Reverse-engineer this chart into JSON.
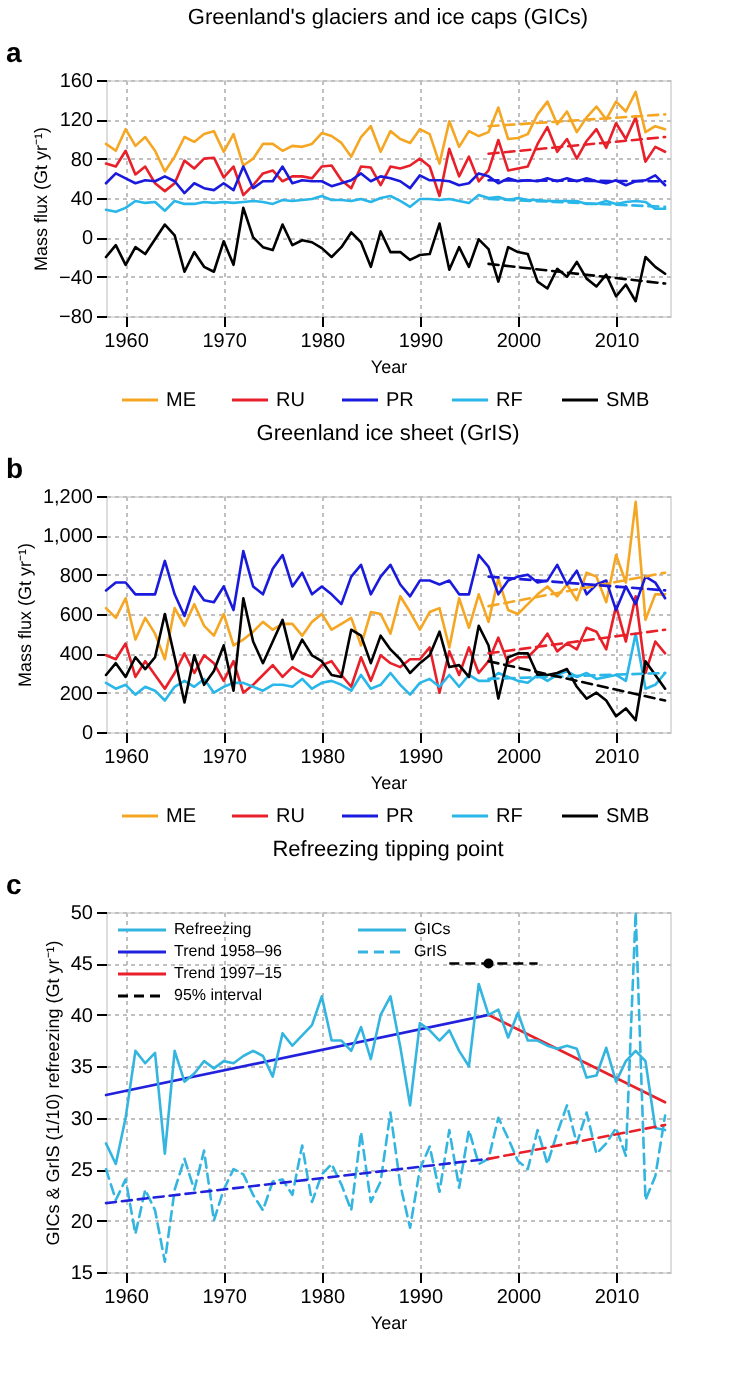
{
  "chart_data": [
    {
      "type": "line",
      "title": "Greenland's glaciers and ice caps (GICs)",
      "xlabel": "Year",
      "ylabel": "Mass flux (Gt yr⁻¹)",
      "annotations": [
        "a"
      ],
      "x": [
        1958,
        1959,
        1960,
        1961,
        1962,
        1963,
        1964,
        1965,
        1966,
        1967,
        1968,
        1969,
        1970,
        1971,
        1972,
        1973,
        1974,
        1975,
        1976,
        1977,
        1978,
        1979,
        1980,
        1981,
        1982,
        1983,
        1984,
        1985,
        1986,
        1987,
        1988,
        1989,
        1990,
        1991,
        1992,
        1993,
        1994,
        1995,
        1996,
        1997,
        1998,
        1999,
        2000,
        2001,
        2002,
        2003,
        2004,
        2005,
        2006,
        2007,
        2008,
        2009,
        2010,
        2011,
        2012,
        2013,
        2014,
        2015
      ],
      "xlim": [
        1958,
        2015.5
      ],
      "xticks": [
        1960,
        1970,
        1980,
        1990,
        2000,
        2010
      ],
      "ylim": [
        -80,
        160
      ],
      "yticks": [
        {
          "value": -80,
          "label": "−80"
        },
        {
          "value": -40,
          "label": "−40"
        },
        0,
        40,
        80,
        120,
        160
      ],
      "grid": true,
      "legend": "bottom",
      "line_style": "solid",
      "series": [
        {
          "name": "ME",
          "color": "#f5a623",
          "values": [
            95,
            88,
            110,
            93,
            102,
            88,
            67,
            82,
            102,
            97,
            105,
            108,
            87,
            105,
            73,
            80,
            95,
            95,
            88,
            93,
            92,
            95,
            106,
            103,
            96,
            82,
            102,
            113,
            87,
            108,
            100,
            96,
            110,
            105,
            75,
            118,
            92,
            108,
            103,
            107,
            132,
            100,
            101,
            105,
            125,
            138,
            115,
            128,
            107,
            122,
            133,
            120,
            138,
            128,
            148,
            107,
            113,
            110
          ]
        },
        {
          "name": "RU",
          "color": "#e8202a",
          "values": [
            75,
            72,
            88,
            64,
            72,
            55,
            47,
            55,
            78,
            70,
            80,
            81,
            61,
            72,
            43,
            53,
            65,
            68,
            57,
            62,
            62,
            60,
            72,
            73,
            58,
            50,
            72,
            71,
            53,
            72,
            70,
            73,
            80,
            72,
            42,
            90,
            62,
            82,
            57,
            68,
            99,
            68,
            70,
            72,
            95,
            112,
            87,
            100,
            80,
            98,
            110,
            91,
            116,
            100,
            122,
            77,
            92,
            87
          ]
        },
        {
          "name": "PR",
          "color": "#1a1adc",
          "values": [
            55,
            65,
            60,
            55,
            58,
            57,
            62,
            57,
            45,
            55,
            50,
            48,
            55,
            48,
            72,
            50,
            57,
            57,
            72,
            55,
            58,
            57,
            57,
            52,
            55,
            58,
            65,
            57,
            62,
            60,
            57,
            50,
            63,
            58,
            58,
            57,
            53,
            55,
            65,
            62,
            55,
            60,
            57,
            58,
            57,
            60,
            57,
            60,
            57,
            60,
            57,
            55,
            58,
            53,
            57,
            58,
            63,
            53
          ]
        },
        {
          "name": "RF",
          "color": "#29b6e8",
          "values": [
            28,
            26,
            30,
            37,
            35,
            36,
            27,
            37,
            34,
            34,
            36,
            35,
            36,
            35,
            36,
            37,
            36,
            34,
            38,
            37,
            38,
            39,
            42,
            38,
            38,
            37,
            39,
            36,
            40,
            42,
            37,
            31,
            39,
            39,
            38,
            39,
            37,
            35,
            43,
            40,
            41,
            38,
            40,
            38,
            38,
            37,
            37,
            37,
            37,
            34,
            34,
            37,
            34,
            36,
            37,
            36,
            29,
            29
          ]
        },
        {
          "name": "SMB",
          "color": "#000000",
          "values": [
            -20,
            -8,
            -28,
            -10,
            -17,
            -2,
            13,
            2,
            -35,
            -15,
            -30,
            -35,
            -4,
            -28,
            30,
            0,
            -10,
            -13,
            13,
            -8,
            -3,
            -5,
            -11,
            -20,
            -10,
            5,
            -5,
            -30,
            6,
            -15,
            -15,
            -23,
            -18,
            -17,
            14,
            -33,
            -10,
            -30,
            -2,
            -12,
            -45,
            -10,
            -15,
            -17,
            -45,
            -52,
            -32,
            -40,
            -25,
            -42,
            -50,
            -38,
            -60,
            -48,
            -65,
            -20,
            -30,
            -37
          ]
        },
        {
          "color": "#f5a623",
          "line_style": "dashed",
          "x": [
            1997,
            2015
          ],
          "values": [
            113,
            125
          ]
        },
        {
          "color": "#e8202a",
          "line_style": "dashed",
          "x": [
            1997,
            2015
          ],
          "values": [
            85,
            102
          ]
        },
        {
          "color": "#1a1adc",
          "line_style": "dashed",
          "x": [
            1997,
            2015
          ],
          "values": [
            58,
            57
          ]
        },
        {
          "color": "#29b6e8",
          "line_style": "dashed",
          "x": [
            1997,
            2015
          ],
          "values": [
            39,
            31
          ]
        },
        {
          "color": "#000000",
          "line_style": "dashed",
          "x": [
            1997,
            2015
          ],
          "values": [
            -27,
            -47
          ]
        }
      ]
    },
    {
      "type": "line",
      "title": "Greenland ice sheet (GrIS)",
      "xlabel": "Year",
      "ylabel": "Mass flux (Gt yr⁻¹)",
      "annotations": [
        "b"
      ],
      "x": [
        1958,
        1959,
        1960,
        1961,
        1962,
        1963,
        1964,
        1965,
        1966,
        1967,
        1968,
        1969,
        1970,
        1971,
        1972,
        1973,
        1974,
        1975,
        1976,
        1977,
        1978,
        1979,
        1980,
        1981,
        1982,
        1983,
        1984,
        1985,
        1986,
        1987,
        1988,
        1989,
        1990,
        1991,
        1992,
        1993,
        1994,
        1995,
        1996,
        1997,
        1998,
        1999,
        2000,
        2001,
        2002,
        2003,
        2004,
        2005,
        2006,
        2007,
        2008,
        2009,
        2010,
        2011,
        2012,
        2013,
        2014,
        2015
      ],
      "xlim": [
        1958,
        2015.5
      ],
      "xticks": [
        1960,
        1970,
        1980,
        1990,
        2000,
        2010
      ],
      "ylim": [
        0,
        1200
      ],
      "yticks": [
        0,
        200,
        400,
        600,
        800,
        {
          "value": 1000,
          "label": "1,000"
        },
        {
          "value": 1200,
          "label": "1,200"
        }
      ],
      "grid": true,
      "legend": "bottom",
      "line_style": "solid",
      "series": [
        {
          "name": "ME",
          "color": "#f5a623",
          "values": [
            630,
            580,
            680,
            470,
            580,
            500,
            370,
            630,
            540,
            650,
            540,
            490,
            600,
            440,
            470,
            510,
            560,
            520,
            550,
            550,
            490,
            560,
            600,
            520,
            550,
            580,
            440,
            610,
            600,
            500,
            690,
            610,
            520,
            610,
            630,
            430,
            680,
            530,
            700,
            560,
            780,
            620,
            600,
            650,
            700,
            740,
            690,
            750,
            670,
            810,
            790,
            660,
            900,
            760,
            1170,
            570,
            700,
            700
          ]
        },
        {
          "name": "RU",
          "color": "#e8202a",
          "values": [
            390,
            370,
            450,
            280,
            360,
            290,
            220,
            300,
            400,
            300,
            390,
            350,
            260,
            360,
            200,
            240,
            290,
            340,
            280,
            330,
            300,
            280,
            340,
            360,
            290,
            230,
            380,
            260,
            390,
            350,
            330,
            370,
            370,
            430,
            200,
            410,
            290,
            430,
            300,
            360,
            480,
            350,
            380,
            380,
            430,
            500,
            410,
            450,
            420,
            530,
            510,
            420,
            640,
            460,
            690,
            300,
            460,
            400
          ]
        },
        {
          "name": "PR",
          "color": "#1a1adc",
          "values": [
            720,
            760,
            760,
            700,
            700,
            700,
            870,
            700,
            590,
            740,
            670,
            660,
            740,
            620,
            920,
            740,
            700,
            830,
            900,
            740,
            810,
            700,
            740,
            700,
            650,
            790,
            850,
            700,
            790,
            850,
            750,
            690,
            770,
            770,
            750,
            770,
            700,
            700,
            900,
            840,
            700,
            770,
            790,
            800,
            760,
            770,
            850,
            750,
            820,
            700,
            750,
            770,
            620,
            740,
            650,
            790,
            760,
            680
          ]
        },
        {
          "name": "RF",
          "color": "#29b6e8",
          "values": [
            250,
            220,
            240,
            190,
            230,
            210,
            160,
            230,
            260,
            230,
            270,
            200,
            230,
            250,
            250,
            230,
            210,
            240,
            240,
            230,
            270,
            220,
            250,
            260,
            240,
            210,
            290,
            220,
            240,
            300,
            240,
            190,
            250,
            270,
            230,
            290,
            230,
            290,
            260,
            260,
            300,
            280,
            260,
            250,
            290,
            260,
            290,
            310,
            280,
            300,
            270,
            280,
            290,
            260,
            500,
            220,
            240,
            300
          ]
        },
        {
          "name": "SMB",
          "color": "#000000",
          "values": [
            290,
            350,
            280,
            380,
            320,
            380,
            600,
            380,
            150,
            390,
            240,
            310,
            440,
            210,
            680,
            460,
            350,
            460,
            570,
            370,
            470,
            390,
            360,
            290,
            280,
            520,
            490,
            350,
            490,
            420,
            370,
            300,
            350,
            390,
            510,
            330,
            340,
            280,
            540,
            440,
            170,
            380,
            400,
            400,
            290,
            290,
            300,
            320,
            230,
            170,
            200,
            160,
            80,
            120,
            60,
            360,
            290,
            220
          ]
        },
        {
          "color": "#f5a623",
          "line_style": "dashed",
          "x": [
            1997,
            2015
          ],
          "values": [
            640,
            810
          ]
        },
        {
          "color": "#e8202a",
          "line_style": "dashed",
          "x": [
            1997,
            2015
          ],
          "values": [
            400,
            520
          ]
        },
        {
          "color": "#1a1adc",
          "line_style": "dashed",
          "x": [
            1997,
            2015
          ],
          "values": [
            790,
            720
          ]
        },
        {
          "color": "#29b6e8",
          "line_style": "dashed",
          "x": [
            1997,
            2015
          ],
          "values": [
            270,
            300
          ]
        },
        {
          "color": "#000000",
          "line_style": "dashed",
          "x": [
            1997,
            2015
          ],
          "values": [
            360,
            160
          ]
        }
      ]
    },
    {
      "type": "line",
      "title": "Refreezing tipping point",
      "xlabel": "Year",
      "ylabel": "GICs & GrIS (1/10) refreezing (Gt yr⁻¹)",
      "annotations": [
        "c"
      ],
      "legend_title": "Refreezing",
      "x": [
        1958,
        1959,
        1960,
        1961,
        1962,
        1963,
        1964,
        1965,
        1966,
        1967,
        1968,
        1969,
        1970,
        1971,
        1972,
        1973,
        1974,
        1975,
        1976,
        1977,
        1978,
        1979,
        1980,
        1981,
        1982,
        1983,
        1984,
        1985,
        1986,
        1987,
        1988,
        1989,
        1990,
        1991,
        1992,
        1993,
        1994,
        1995,
        1996,
        1997,
        1998,
        1999,
        2000,
        2001,
        2002,
        2003,
        2004,
        2005,
        2006,
        2007,
        2008,
        2009,
        2010,
        2011,
        2012,
        2013,
        2014,
        2015
      ],
      "xlim": [
        1958,
        2015.5
      ],
      "xticks": [
        1960,
        1970,
        1980,
        1990,
        2000,
        2010
      ],
      "ylim": [
        15,
        50
      ],
      "yticks": [
        15,
        20,
        25,
        30,
        35,
        40,
        45,
        50
      ],
      "grid": true,
      "legend": "top left",
      "line_style": "solid",
      "series": [
        {
          "name": "Trend 1958–96",
          "color": "#2222dd",
          "x": [
            1958,
            1997
          ],
          "values": [
            32.2,
            40
          ]
        },
        {
          "name": "Trend 1997–15",
          "color": "#e8202a",
          "x": [
            1997,
            2015
          ],
          "values": [
            40,
            31.5
          ]
        },
        {
          "name": "95% interval",
          "type": "scatter",
          "marker": "circle",
          "line_style": "dashed",
          "color": "#000000",
          "x": [
            1997
          ],
          "values": [
            45
          ],
          "xerrors": [
            [
              1993,
              2002
            ]
          ]
        },
        {
          "name": "GICs",
          "color": "#33b5e0",
          "values": [
            27.5,
            25.5,
            30,
            36.5,
            35.3,
            36.3,
            26.5,
            36.5,
            33.5,
            34.3,
            35.5,
            34.8,
            35.5,
            35.3,
            36,
            36.5,
            36,
            34,
            38.2,
            37,
            38,
            39,
            41.8,
            37.5,
            37.5,
            36.5,
            38.8,
            35.7,
            40,
            41.8,
            36.9,
            31.2,
            39.2,
            38.5,
            37.5,
            38.5,
            36.5,
            35,
            43,
            40,
            40.5,
            37.8,
            40.2,
            37.5,
            37.5,
            37,
            36.7,
            37,
            36.7,
            33.9,
            34.1,
            36.8,
            33.5,
            35.5,
            36.5,
            35.5,
            29,
            28.8
          ]
        },
        {
          "name": "GrIS",
          "color": "#33b5e0",
          "line_style": "dashed",
          "values": [
            25,
            22,
            24,
            18.7,
            23,
            21,
            16,
            23,
            26,
            23,
            26.8,
            20,
            23,
            25,
            24.5,
            22.5,
            21,
            23.8,
            24,
            22.5,
            27.3,
            21.8,
            24.5,
            25.5,
            23.5,
            21,
            28.6,
            21.8,
            23.8,
            30.5,
            23.5,
            19.3,
            25,
            27.2,
            22.8,
            28.8,
            23.2,
            28.8,
            25.5,
            26,
            30,
            28,
            25.8,
            25,
            28.8,
            25.5,
            28.5,
            31.2,
            27.5,
            30.5,
            26.5,
            27.5,
            29,
            26.3,
            50,
            22,
            24.3,
            30.2
          ]
        },
        {
          "color": "#2222dd",
          "line_style": "dashed",
          "x": [
            1958,
            1997
          ],
          "values": [
            21.7,
            26
          ]
        },
        {
          "color": "#e8202a",
          "line_style": "dashed",
          "x": [
            1997,
            2015
          ],
          "values": [
            26,
            29.3
          ]
        }
      ]
    }
  ]
}
